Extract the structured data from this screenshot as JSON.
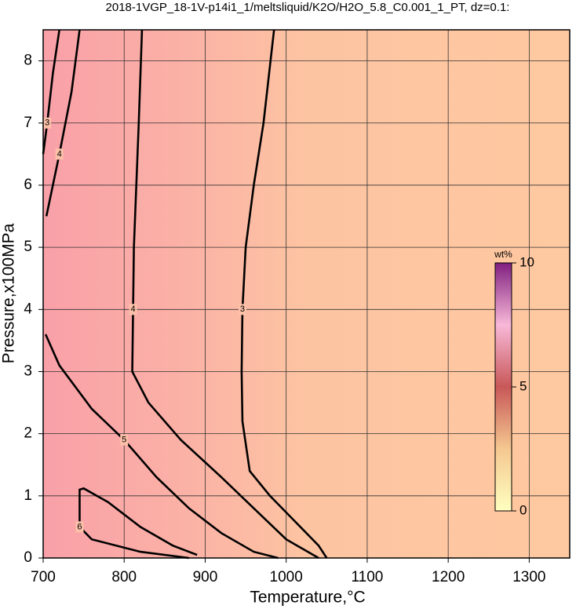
{
  "chart_data": {
    "type": "contour",
    "title": "2018-1VGP_18-1V-p14i1_1/meltsliquid/K2O/H2O_5.8_C0.001_1_PT, dz=0.1:",
    "xlabel": "Temperature,°C",
    "ylabel": "Pressure,x100MPa",
    "xlim": [
      700,
      1350
    ],
    "ylim": [
      0,
      8.5
    ],
    "xticks": [
      700,
      800,
      900,
      1000,
      1100,
      1200,
      1300
    ],
    "yticks": [
      0,
      1,
      2,
      3,
      4,
      5,
      6,
      7,
      8
    ],
    "grid": true,
    "contours": [
      {
        "level": 3,
        "x": [
          985,
          972,
          960,
          950,
          946,
          945,
          946,
          955,
          980,
          1010,
          1040,
          1050
        ],
        "y": [
          8.5,
          7,
          6,
          5,
          4,
          3,
          2.2,
          1.4,
          1,
          0.6,
          0.2,
          0
        ]
      },
      {
        "level": 4,
        "x": [
          822,
          818,
          815,
          812,
          811,
          810,
          830,
          870,
          920,
          960,
          1000,
          1040
        ],
        "y": [
          8.5,
          7,
          6,
          5,
          4,
          3,
          2.5,
          1.9,
          1.3,
          0.8,
          0.3,
          0
        ]
      },
      {
        "level": 5,
        "x": [
          703,
          720,
          760,
          800,
          840,
          880,
          920,
          960,
          990
        ],
        "y": [
          3.6,
          3.1,
          2.4,
          1.9,
          1.3,
          0.8,
          0.4,
          0.1,
          0
        ]
      },
      {
        "level": 6,
        "x": [
          880,
          820,
          760,
          745,
          745,
          750,
          780,
          820,
          860,
          890
        ],
        "y": [
          0,
          0.1,
          0.3,
          0.5,
          1.1,
          1.12,
          0.9,
          0.5,
          0.2,
          0.05
        ]
      },
      {
        "level": 3,
        "x": [
          700,
          705,
          712,
          720
        ],
        "y": [
          6.5,
          7,
          7.8,
          8.5
        ]
      },
      {
        "level": 4,
        "x": [
          704,
          720,
          735,
          745
        ],
        "y": [
          5.5,
          6.5,
          7.5,
          8.5
        ]
      }
    ],
    "colorbar": {
      "label": "wt%",
      "lim": [
        0,
        10
      ],
      "ticks": [
        0,
        5,
        10
      ]
    }
  }
}
